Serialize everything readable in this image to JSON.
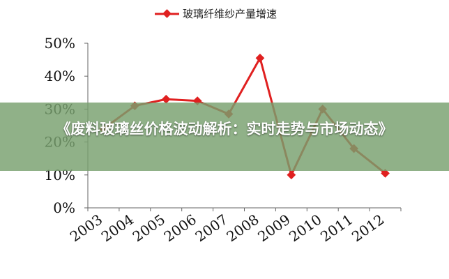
{
  "chart_data": {
    "type": "line",
    "categories": [
      "2003",
      "2004",
      "2005",
      "2006",
      "2007",
      "2008",
      "2009",
      "2010",
      "2011",
      "2012"
    ],
    "series": [
      {
        "name": "玻璃纤维纱产量增速",
        "values": [
          24,
          31,
          33,
          32.5,
          28.5,
          45.5,
          10,
          30,
          18,
          10.5
        ]
      }
    ],
    "ylim": [
      0,
      50
    ],
    "yticks": [
      "0%",
      "10%",
      "20%",
      "30%",
      "40%",
      "50%"
    ],
    "ytick_values": [
      0,
      10,
      20,
      30,
      40,
      50
    ],
    "legend_position": "top",
    "grid": false,
    "colors": {
      "series": "#e02020",
      "axis": "#666666"
    }
  },
  "overlay": {
    "title": "《废料玻璃丝价格波动解析：实时走势与市场动态》"
  }
}
